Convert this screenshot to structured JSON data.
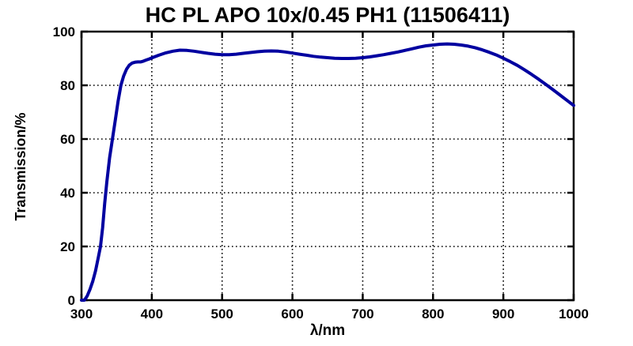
{
  "chart_data": {
    "type": "line",
    "title": "HC PL APO 10x/0.45 PH1 (11506411)",
    "xlabel": "λ/nm",
    "ylabel": "Transmission/%",
    "xlim": [
      300,
      1000
    ],
    "ylim": [
      0,
      100
    ],
    "x_ticks": [
      300,
      400,
      500,
      600,
      700,
      800,
      900,
      1000
    ],
    "y_ticks": [
      0,
      20,
      40,
      60,
      80,
      100
    ],
    "grid": "dotted",
    "grid_color": "#000000",
    "border_color": "#000000",
    "line_color": "#0000A0",
    "line_width": 4,
    "legend": "none",
    "series": [
      {
        "name": "transmission",
        "x": [
          300,
          304,
          308,
          312,
          316,
          320,
          324,
          327,
          330,
          333,
          336,
          340,
          344,
          348,
          352,
          356,
          360,
          364,
          368,
          372,
          376,
          380,
          384,
          388,
          392,
          396,
          400,
          410,
          420,
          430,
          440,
          450,
          460,
          470,
          480,
          490,
          500,
          510,
          520,
          530,
          540,
          550,
          560,
          570,
          580,
          590,
          600,
          610,
          620,
          630,
          640,
          650,
          660,
          670,
          680,
          690,
          700,
          710,
          720,
          730,
          740,
          750,
          760,
          770,
          780,
          790,
          800,
          810,
          820,
          830,
          840,
          850,
          860,
          870,
          880,
          890,
          900,
          910,
          920,
          930,
          940,
          950,
          960,
          970,
          980,
          990,
          1000
        ],
        "y": [
          0,
          0,
          1.5,
          4,
          7,
          11,
          16,
          20,
          27,
          36,
          44,
          53,
          60,
          67,
          74,
          80,
          83.5,
          86,
          87.5,
          88.3,
          88.6,
          88.7,
          88.7,
          89.0,
          89.4,
          89.8,
          90.2,
          91.2,
          92.1,
          92.7,
          93.1,
          93.0,
          92.7,
          92.3,
          91.9,
          91.6,
          91.4,
          91.4,
          91.6,
          91.9,
          92.2,
          92.5,
          92.7,
          92.8,
          92.7,
          92.4,
          92.0,
          91.6,
          91.2,
          90.8,
          90.5,
          90.3,
          90.1,
          90.0,
          90.0,
          90.1,
          90.3,
          90.6,
          91.0,
          91.4,
          91.9,
          92.4,
          93.0,
          93.6,
          94.2,
          94.7,
          95.0,
          95.3,
          95.4,
          95.3,
          95.0,
          94.6,
          94.0,
          93.2,
          92.3,
          91.3,
          90.1,
          88.8,
          87.4,
          85.8,
          84.1,
          82.3,
          80.4,
          78.5,
          76.5,
          74.5,
          72.5
        ]
      }
    ]
  }
}
